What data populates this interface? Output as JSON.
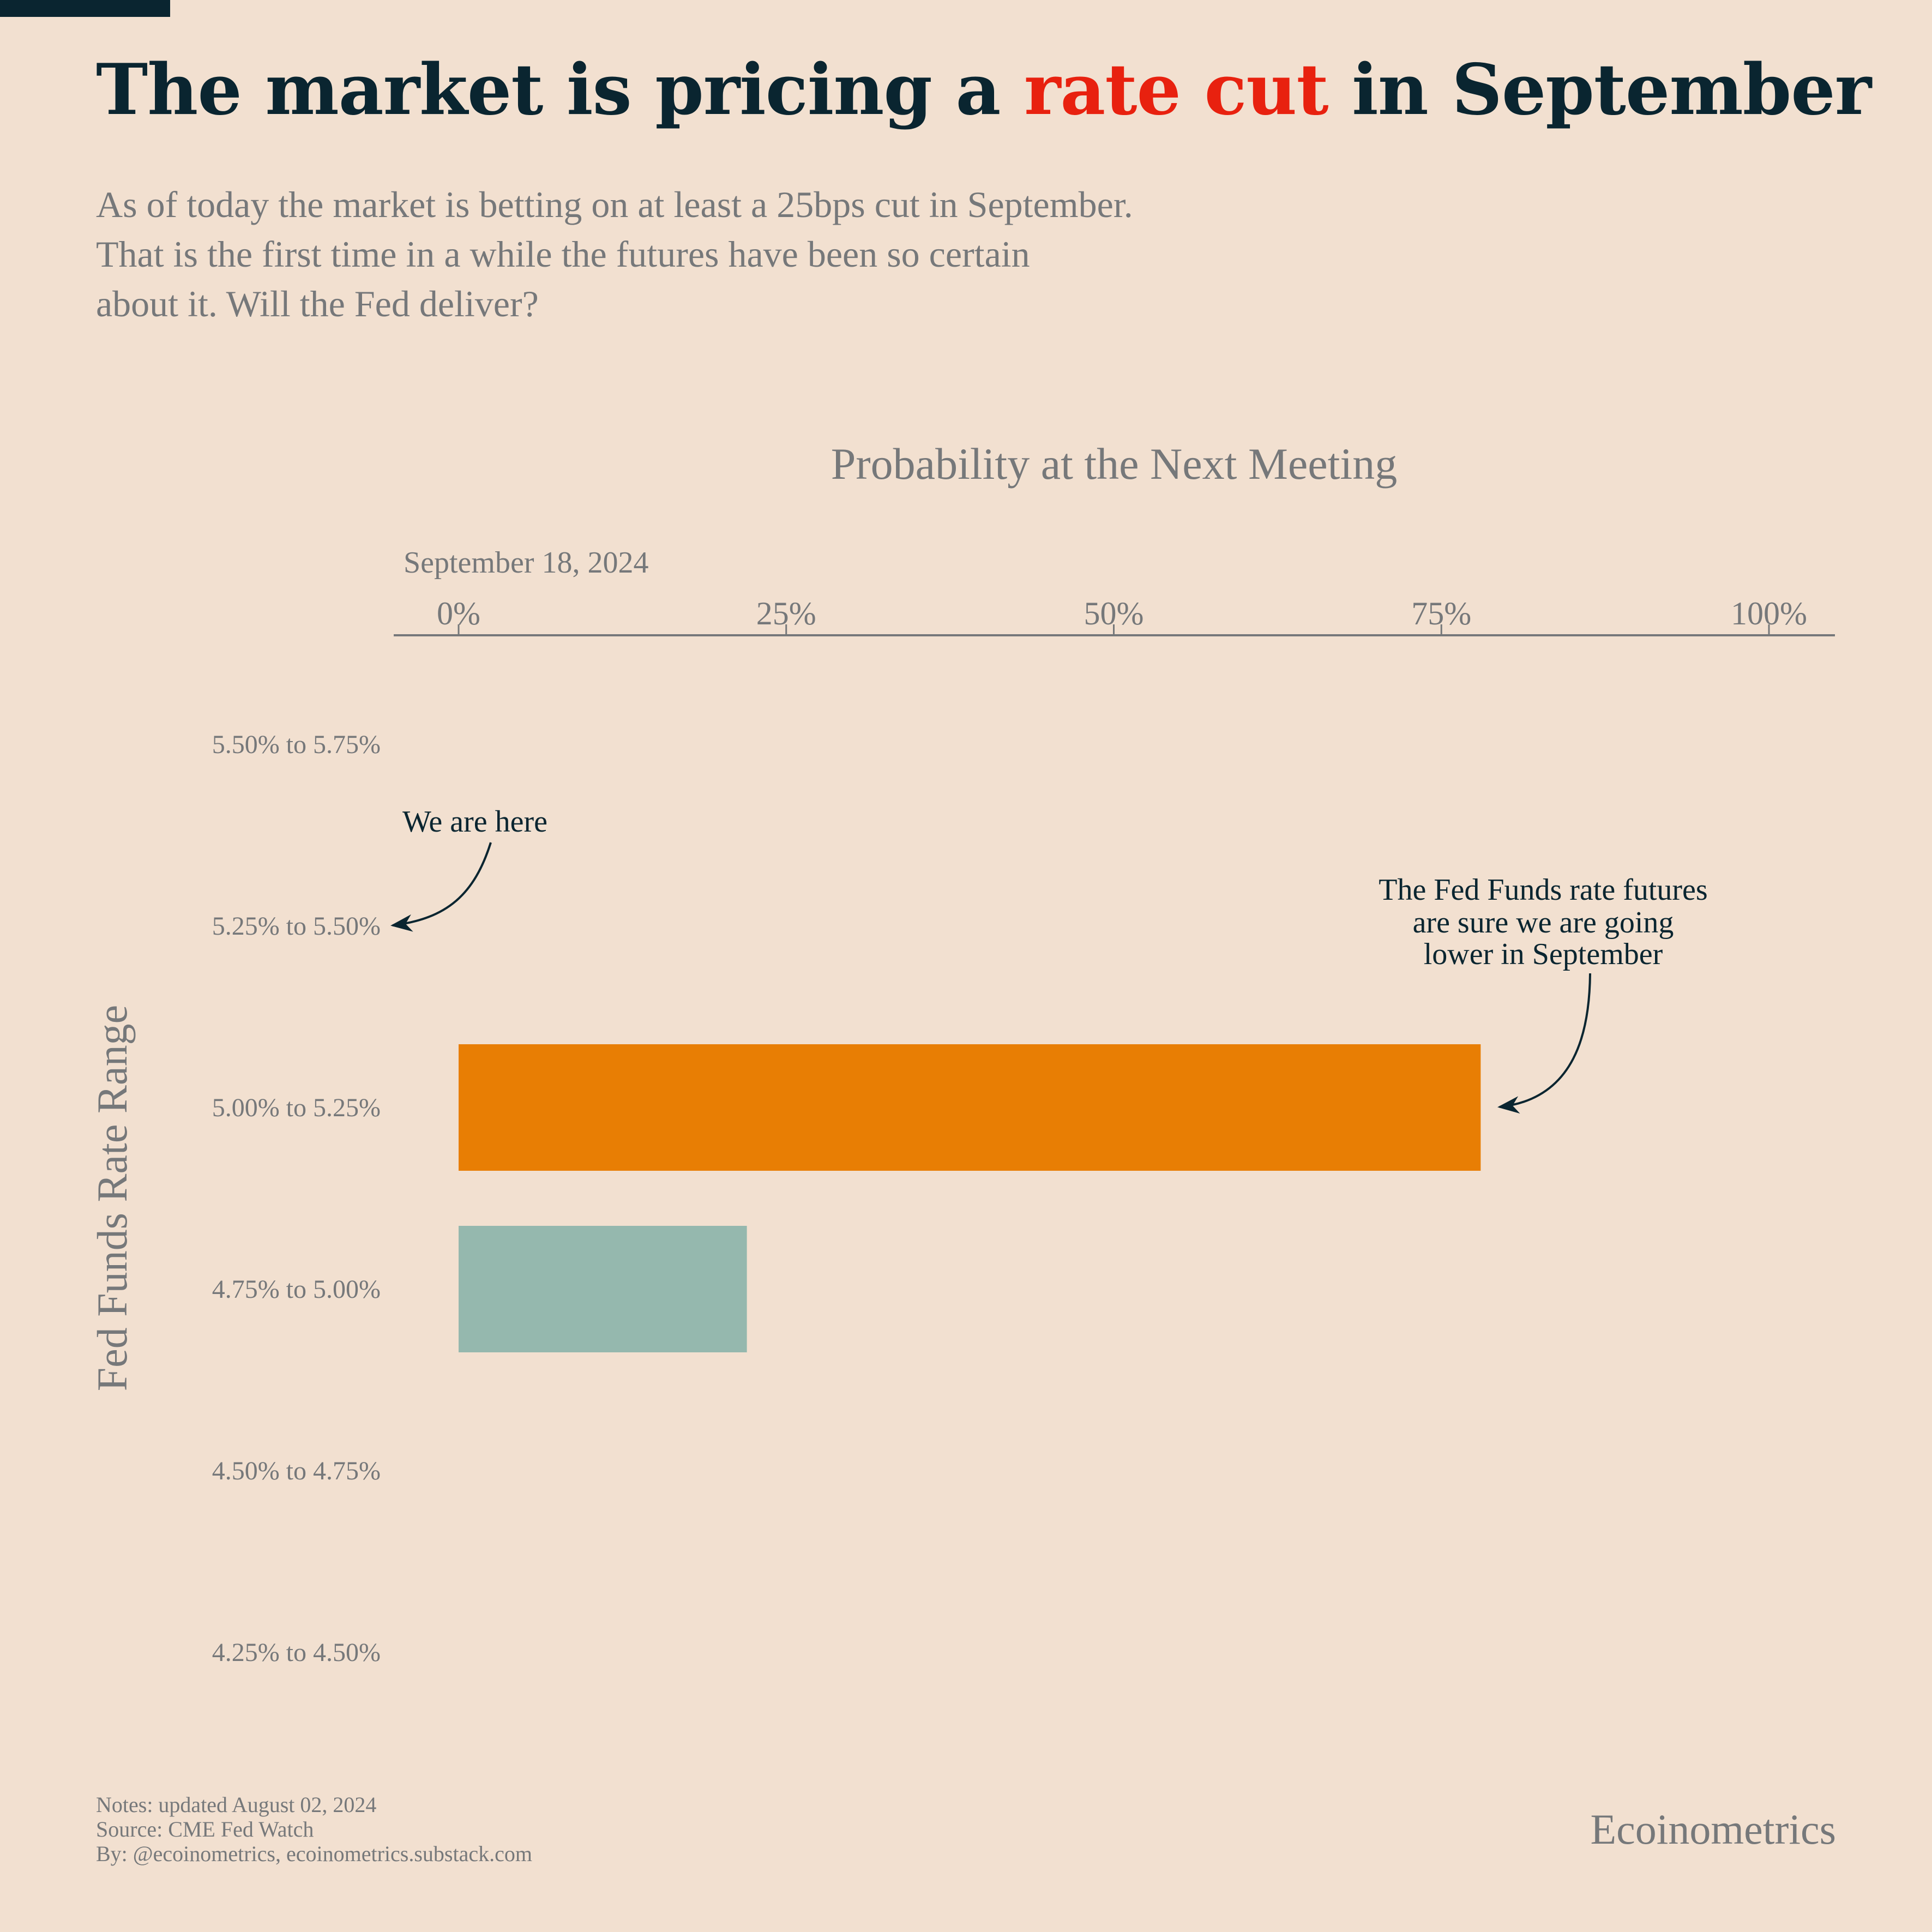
{
  "header": {
    "title_part1": "The market is pricing a ",
    "title_highlight": "rate cut",
    "title_part2": " in September",
    "subtitle_lines": [
      "As of today the market is betting on at least a 25bps cut in September.",
      "That is the first time in a while the futures have been so certain",
      "about it. Will the Fed deliver?"
    ]
  },
  "colors": {
    "background": "#F2E0D0",
    "title": "#0A2530",
    "highlight": "#E8210F",
    "muted_text": "#76787A",
    "bar_primary": "#E87E04",
    "bar_secondary": "#95B8AE"
  },
  "chart_data": {
    "type": "bar",
    "orientation": "horizontal",
    "title": "Probability at the Next Meeting",
    "meeting_label": "September 18, 2024",
    "ylabel": "Fed Funds Rate Range",
    "xlim": [
      0,
      100
    ],
    "x_ticks": [
      0,
      25,
      50,
      75,
      100
    ],
    "x_tick_labels": [
      "0%",
      "25%",
      "50%",
      "75%",
      "100%"
    ],
    "categories": [
      "5.50% to 5.75%",
      "5.25% to 5.50%",
      "5.00% to 5.25%",
      "4.75% to 5.00%",
      "4.50% to 4.75%",
      "4.25% to 4.50%"
    ],
    "values": [
      0,
      0,
      78,
      22,
      0,
      0
    ],
    "bar_colors": [
      null,
      null,
      "#E87E04",
      "#95B8AE",
      null,
      null
    ],
    "annotations": [
      {
        "text_lines": [
          "We are here"
        ],
        "target_category": "5.25% to 5.50%"
      },
      {
        "text_lines": [
          "The Fed Funds rate futures",
          "are sure we are going",
          "lower in September"
        ],
        "target_category": "5.00% to 5.25%"
      }
    ],
    "grid": false
  },
  "footer": {
    "notes": "Notes: updated August 02, 2024",
    "source": "Source: CME Fed Watch",
    "by": "By: @ecoinometrics, ecoinometrics.substack.com",
    "brand": "Ecoinometrics"
  }
}
